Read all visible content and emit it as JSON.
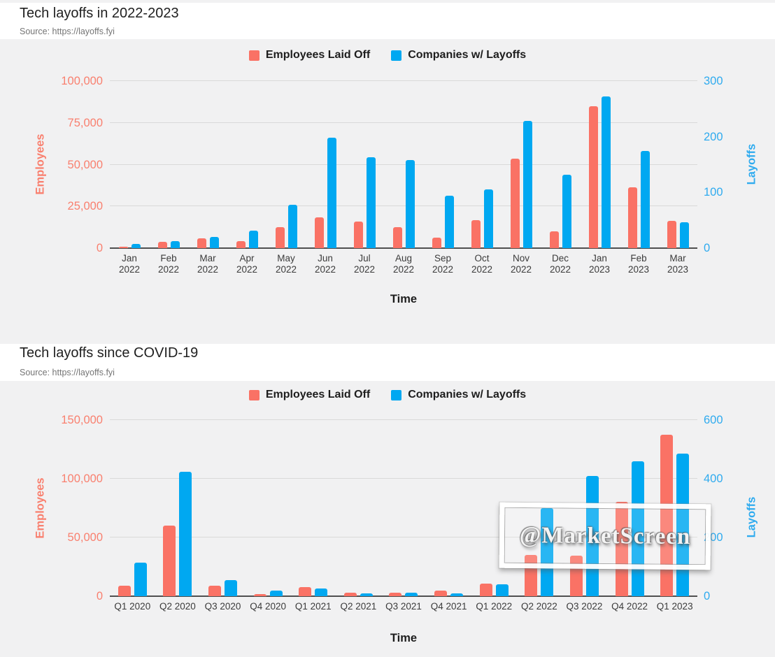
{
  "watermark": {
    "text": "@MarketScreen"
  },
  "colors": {
    "employees": "#FA7265",
    "companies": "#00A8F1",
    "employees_text": "#F9806F",
    "companies_text": "#2FABEF",
    "grid": "#D9D9D9",
    "axis_line": "#4F4F4F",
    "panel_bg": "#F1F1F2",
    "band_bg": "#FFFFFF",
    "title_text": "#1F1F1F",
    "source_text": "#757575",
    "tick_text": "#3B3B3B"
  },
  "chart_data": [
    {
      "type": "bar",
      "title": "Tech layoffs in 2022-2023",
      "source": "Source: https://layoffs.fyi",
      "xlabel": "Time",
      "ylabel_left": "Employees",
      "ylabel_right": "Layoffs",
      "ylim_left": [
        0,
        100000
      ],
      "ylim_right": [
        0,
        300
      ],
      "yticks_left": [
        0,
        25000,
        50000,
        75000,
        100000
      ],
      "yticks_right": [
        0,
        100,
        200,
        300
      ],
      "grid": true,
      "legend_position": "top",
      "categories": [
        "Jan 2022",
        "Feb 2022",
        "Mar 2022",
        "Apr 2022",
        "May 2022",
        "Jun 2022",
        "Jul 2022",
        "Aug 2022",
        "Sep 2022",
        "Oct 2022",
        "Nov 2022",
        "Dec 2022",
        "Jan 2023",
        "Feb 2023",
        "Mar 2023"
      ],
      "series": [
        {
          "name": "Employees Laid Off",
          "axis": "left",
          "values": [
            1000,
            3600,
            6000,
            4200,
            12400,
            18400,
            16000,
            12700,
            6100,
            16700,
            53500,
            10100,
            85000,
            36200,
            16500
          ]
        },
        {
          "name": "Companies w/ Layoffs",
          "axis": "right",
          "values": [
            8,
            13,
            20,
            31,
            78,
            198,
            163,
            158,
            94,
            105,
            229,
            132,
            272,
            174,
            46
          ]
        }
      ]
    },
    {
      "type": "bar",
      "title": "Tech layoffs since COVID-19",
      "source": "Source: https://layoffs.fyi",
      "xlabel": "Time",
      "ylabel_left": "Employees",
      "ylabel_right": "Layoffs",
      "ylim_left": [
        0,
        150000
      ],
      "ylim_right": [
        0,
        600
      ],
      "yticks_left": [
        0,
        50000,
        100000,
        150000
      ],
      "yticks_right": [
        0,
        200,
        400,
        600
      ],
      "grid": true,
      "legend_position": "top",
      "categories": [
        "Q1 2020",
        "Q2 2020",
        "Q3 2020",
        "Q4 2020",
        "Q1 2021",
        "Q2 2021",
        "Q3 2021",
        "Q4 2021",
        "Q1 2022",
        "Q2 2022",
        "Q3 2022",
        "Q4 2022",
        "Q1 2023"
      ],
      "series": [
        {
          "name": "Employees Laid Off",
          "axis": "left",
          "values": [
            9000,
            60000,
            9000,
            1500,
            8000,
            3000,
            3000,
            4500,
            11000,
            34900,
            34800,
            80500,
            137500
          ]
        },
        {
          "name": "Companies w/ Layoffs",
          "axis": "right",
          "values": [
            115,
            425,
            55,
            18,
            26,
            10,
            12,
            9,
            40,
            300,
            410,
            460,
            485
          ]
        }
      ]
    }
  ]
}
